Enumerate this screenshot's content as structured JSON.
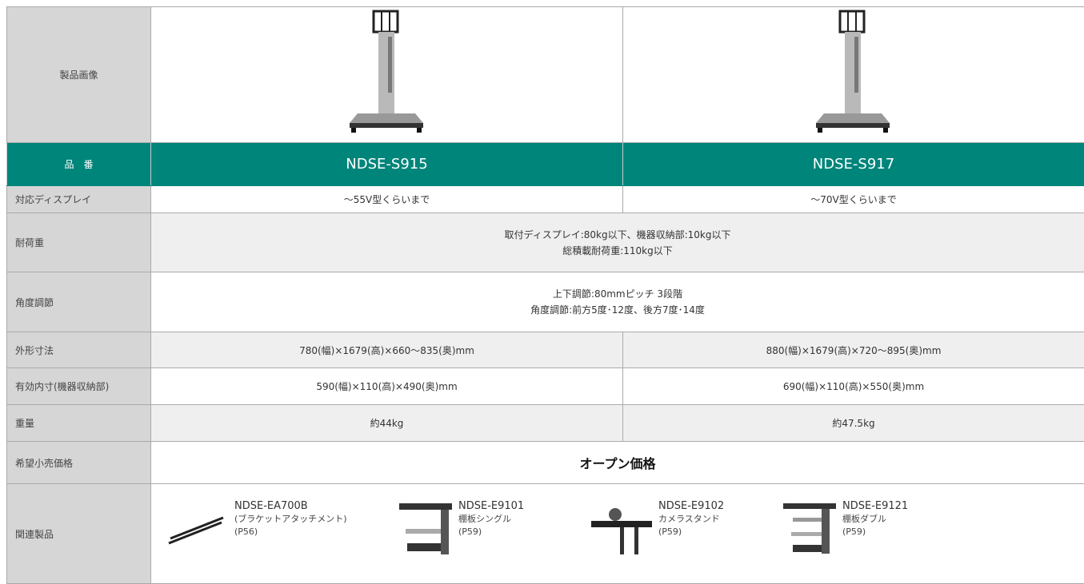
{
  "table": {
    "rows": [
      {
        "label": "製品画像"
      },
      {
        "label": "品　番",
        "values": [
          "NDSE-S915",
          "NDSE-S917"
        ]
      },
      {
        "label": "対応ディスプレイ",
        "values": [
          "〜55V型くらいまで",
          "〜70V型くらいまで"
        ]
      },
      {
        "label": "耐荷重",
        "lines": [
          "取付ディスプレイ:80kg以下、機器収納部:10kg以下",
          "総積載耐荷重:110kg以下"
        ]
      },
      {
        "label": "角度調節",
        "lines": [
          "上下調節:80mmピッチ 3段階",
          "角度調節:前方5度･12度、後方7度･14度"
        ]
      },
      {
        "label": "外形寸法",
        "values": [
          "780(幅)×1679(高)×660〜835(奥)mm",
          "880(幅)×1679(高)×720〜895(奥)mm"
        ]
      },
      {
        "label": "有効内寸(機器収納部)",
        "values": [
          "590(幅)×110(高)×490(奥)mm",
          "690(幅)×110(高)×550(奥)mm"
        ]
      },
      {
        "label": "重量",
        "values": [
          "約44kg",
          "約47.5kg"
        ]
      },
      {
        "label": "希望小売価格",
        "value": "オープン価格"
      },
      {
        "label": "関連製品",
        "items": [
          {
            "code": "NDSE-EA700B",
            "name": "(ブラケットアタッチメント)",
            "page": "(P56)"
          },
          {
            "code": "NDSE-E9101",
            "name": "棚板シングル",
            "page": "(P59)"
          },
          {
            "code": "NDSE-E9102",
            "name": "カメラスタンド",
            "page": "(P59)"
          },
          {
            "code": "NDSE-E9121",
            "name": "棚板ダブル",
            "page": "(P59)"
          }
        ]
      }
    ]
  }
}
